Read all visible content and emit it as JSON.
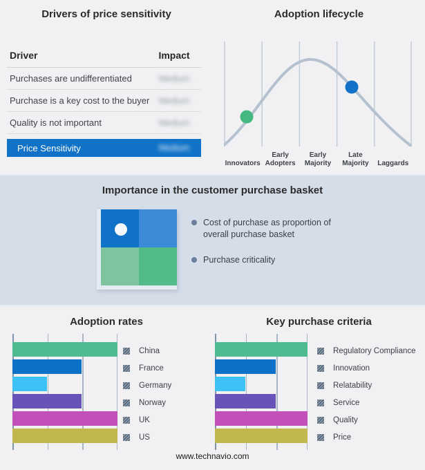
{
  "page": {
    "footer": "www.technavio.com",
    "background": "#f1f1f3",
    "band_background": "#d4dde8",
    "accent_blue": "#1173c7"
  },
  "drivers_panel": {
    "title": "Drivers of price sensitivity",
    "table": {
      "col_driver": "Driver",
      "col_impact": "Impact",
      "rows": [
        {
          "driver": "Purchases are undifferentiated",
          "impact": "Medium"
        },
        {
          "driver": "Purchase is a key cost to the buyer",
          "impact": "Medium"
        },
        {
          "driver": "Quality is not important",
          "impact": "Medium"
        }
      ],
      "highlight": {
        "driver": "Price Sensitivity",
        "impact": "Medium",
        "background": "#1173c7"
      }
    }
  },
  "lifecycle_panel": {
    "title": "Adoption lifecycle",
    "stages": [
      "Innovators",
      "Early Adopters",
      "Early Majority",
      "Late Majority",
      "Laggards"
    ],
    "curve_color": "#b5c1cf",
    "gridline_color": "#c2ccd8",
    "markers": [
      {
        "stage": "Innovators",
        "color": "#44b87e"
      },
      {
        "stage": "Late Majority",
        "color": "#1372c8"
      }
    ]
  },
  "basket_panel": {
    "title": "Importance in the customer purchase basket",
    "bullets": [
      "Cost of purchase as proportion of overall purchase basket",
      "Purchase criticality"
    ],
    "quadrant_colors": {
      "top_left": "#1071c9",
      "top_right": "#3d8ad8",
      "bottom_left": "#7fc4a0",
      "bottom_right": "#52bb88"
    }
  },
  "chart_data": [
    {
      "type": "bar",
      "orientation": "horizontal",
      "title": "Adoption rates",
      "categories": [
        "China",
        "France",
        "Germany",
        "Norway",
        "UK",
        "US"
      ],
      "values": [
        100,
        66,
        33,
        66,
        100,
        100
      ],
      "value_unit": "percent_of_axis_max",
      "colors": [
        "#4fb98f",
        "#0c71c7",
        "#3ec2f5",
        "#6854b8",
        "#c350b8",
        "#c0b84c"
      ],
      "xlim": [
        0,
        100
      ],
      "gridlines_percent": [
        0,
        33.3,
        66.7,
        100
      ],
      "legend_position": "right"
    },
    {
      "type": "bar",
      "orientation": "horizontal",
      "title": "Key purchase criteria",
      "categories": [
        "Regulatory Compliance",
        "Innovation",
        "Relatability",
        "Service",
        "Quality",
        "Price"
      ],
      "values": [
        100,
        66,
        33,
        66,
        100,
        100
      ],
      "value_unit": "percent_of_axis_max",
      "colors": [
        "#4fb98f",
        "#0c71c7",
        "#3ec2f5",
        "#6854b8",
        "#c350b8",
        "#c0b84c"
      ],
      "xlim": [
        0,
        100
      ],
      "gridlines_percent": [
        0,
        33.3,
        66.7,
        100
      ],
      "legend_position": "right"
    }
  ]
}
